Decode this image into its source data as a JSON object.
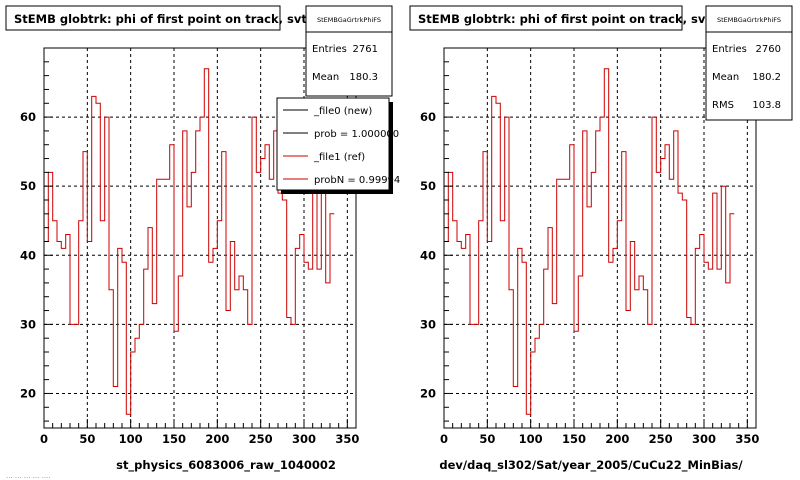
{
  "chart_data": [
    {
      "type": "line",
      "title": "StEMB globtrk: phi of first point on track, svt",
      "xlabel": "st_physics_6083006_raw_1040002",
      "ylabel": "",
      "xlim": [
        0,
        360
      ],
      "ylim": [
        15,
        70
      ],
      "x_ticks": [
        0,
        50,
        100,
        150,
        200,
        250,
        300,
        350
      ],
      "y_ticks": [
        20,
        30,
        40,
        50,
        60
      ],
      "grid": true,
      "footer_text": "... ... ... ... ....",
      "stats": {
        "name": "StEMBGaGrtrkPhiFS",
        "entries_label": "Entries",
        "entries": "2761",
        "mean_label": "Mean",
        "mean": "180.3"
      },
      "legend": [
        {
          "label": "_file0 (new)",
          "color": "#000000"
        },
        {
          "label": "prob = 1.000000",
          "color": "#000000"
        },
        {
          "label": "_file1 (ref)",
          "color": "#cc0000"
        },
        {
          "label": "probN = 0.99994",
          "color": "#cc0000"
        }
      ],
      "series": [
        {
          "name": "_file1 (ref)",
          "color": "#cc0000",
          "bin_width": 5,
          "values": [
            42,
            52,
            45,
            42,
            41,
            43,
            30,
            30,
            45,
            55,
            42,
            63,
            62,
            45,
            60,
            35,
            21,
            41,
            39,
            17,
            26,
            28,
            30,
            38,
            44,
            33,
            51,
            51,
            51,
            56,
            29,
            37,
            58,
            47,
            52,
            58,
            60,
            67,
            39,
            41,
            45,
            55,
            32,
            42,
            35,
            37,
            35,
            30,
            60,
            52,
            54,
            56,
            51,
            58,
            49,
            48,
            31,
            30,
            41,
            43,
            39,
            38,
            49,
            38,
            50,
            36,
            46
          ]
        }
      ]
    },
    {
      "type": "line",
      "title": "StEMB globtrk: phi of first point on track, svt",
      "xlabel": "dev/daq_sl302/Sat/year_2005/CuCu22_MinBias/",
      "ylabel": "",
      "xlim": [
        0,
        360
      ],
      "ylim": [
        15,
        70
      ],
      "x_ticks": [
        0,
        50,
        100,
        150,
        200,
        250,
        300,
        350
      ],
      "y_ticks": [
        20,
        30,
        40,
        50,
        60
      ],
      "grid": true,
      "stats": {
        "name": "StEMBGaGrtrkPhiFS",
        "entries_label": "Entries",
        "entries": "2760",
        "mean_label": "Mean",
        "mean": "180.2",
        "rms_label": "RMS",
        "rms": "103.8"
      },
      "series": [
        {
          "name": "",
          "color": "#cc0000",
          "bin_width": 5,
          "values": [
            42,
            52,
            45,
            42,
            41,
            43,
            30,
            30,
            45,
            55,
            42,
            63,
            62,
            45,
            60,
            35,
            21,
            41,
            39,
            17,
            26,
            28,
            30,
            38,
            44,
            33,
            51,
            51,
            51,
            56,
            29,
            37,
            58,
            47,
            52,
            58,
            60,
            67,
            39,
            41,
            45,
            55,
            32,
            42,
            35,
            37,
            35,
            30,
            60,
            52,
            54,
            56,
            51,
            58,
            49,
            48,
            31,
            30,
            41,
            43,
            39,
            38,
            49,
            38,
            50,
            36,
            46
          ]
        }
      ]
    }
  ]
}
